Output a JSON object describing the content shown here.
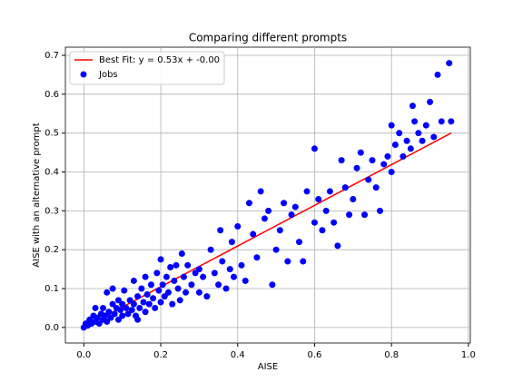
{
  "chart_data": {
    "type": "scatter",
    "title": "Comparing different prompts",
    "x_label": "AISE",
    "y_label": "AISE with an alternative prompt",
    "xlim": [
      -0.048,
      1.005
    ],
    "ylim": [
      -0.04,
      0.721
    ],
    "xticks": [
      {
        "value": 0,
        "label": "0.0"
      },
      0.2,
      0.4,
      0.6,
      0.8,
      {
        "value": 1,
        "label": "1.0"
      }
    ],
    "yticks": [
      {
        "value": 0,
        "label": "0.0"
      },
      0.1,
      0.2,
      0.3,
      0.4,
      0.5,
      0.6,
      0.7
    ],
    "grid": true,
    "legend": "upper left",
    "series": [
      {
        "name": "Best Fit: y = 0.53x + -0.00",
        "color": "red",
        "mode": "line",
        "x": [
          0,
          0.955
        ],
        "values": [
          0,
          0.5
        ]
      },
      {
        "name": "Jobs",
        "color": "blue",
        "mode": "markers",
        "x": [
          0.0,
          0.005,
          0.01,
          0.015,
          0.02,
          0.025,
          0.03,
          0.035,
          0.04,
          0.045,
          0.05,
          0.05,
          0.055,
          0.06,
          0.06,
          0.065,
          0.07,
          0.075,
          0.08,
          0.085,
          0.09,
          0.09,
          0.095,
          0.1,
          0.1,
          0.105,
          0.11,
          0.115,
          0.12,
          0.125,
          0.13,
          0.13,
          0.135,
          0.14,
          0.145,
          0.15,
          0.155,
          0.16,
          0.16,
          0.165,
          0.17,
          0.175,
          0.18,
          0.185,
          0.19,
          0.195,
          0.2,
          0.2,
          0.205,
          0.21,
          0.215,
          0.22,
          0.225,
          0.23,
          0.235,
          0.24,
          0.245,
          0.25,
          0.255,
          0.26,
          0.265,
          0.27,
          0.28,
          0.29,
          0.3,
          0.3,
          0.31,
          0.32,
          0.33,
          0.34,
          0.35,
          0.355,
          0.36,
          0.37,
          0.38,
          0.385,
          0.39,
          0.4,
          0.41,
          0.42,
          0.43,
          0.44,
          0.45,
          0.46,
          0.47,
          0.48,
          0.49,
          0.5,
          0.51,
          0.52,
          0.53,
          0.54,
          0.55,
          0.56,
          0.57,
          0.58,
          0.6,
          0.6,
          0.61,
          0.62,
          0.63,
          0.64,
          0.65,
          0.66,
          0.67,
          0.68,
          0.69,
          0.7,
          0.71,
          0.72,
          0.73,
          0.74,
          0.75,
          0.76,
          0.77,
          0.78,
          0.79,
          0.8,
          0.8,
          0.81,
          0.82,
          0.83,
          0.84,
          0.85,
          0.855,
          0.86,
          0.87,
          0.88,
          0.89,
          0.9,
          0.91,
          0.92,
          0.93,
          0.95,
          0.955,
          0.14,
          0.03,
          0.075
        ],
        "values": [
          0.0,
          0.01,
          0.005,
          0.02,
          0.01,
          0.03,
          0.015,
          0.025,
          0.01,
          0.035,
          0.02,
          0.05,
          0.03,
          0.015,
          0.09,
          0.04,
          0.025,
          0.06,
          0.035,
          0.05,
          0.02,
          0.07,
          0.045,
          0.03,
          0.06,
          0.095,
          0.05,
          0.035,
          0.07,
          0.045,
          0.06,
          0.12,
          0.03,
          0.08,
          0.05,
          0.1,
          0.065,
          0.04,
          0.13,
          0.085,
          0.06,
          0.11,
          0.075,
          0.05,
          0.14,
          0.095,
          0.065,
          0.175,
          0.11,
          0.08,
          0.13,
          0.09,
          0.155,
          0.06,
          0.12,
          0.16,
          0.1,
          0.07,
          0.19,
          0.13,
          0.09,
          0.16,
          0.11,
          0.14,
          0.09,
          0.15,
          0.13,
          0.08,
          0.2,
          0.14,
          0.11,
          0.25,
          0.17,
          0.1,
          0.15,
          0.22,
          0.13,
          0.26,
          0.16,
          0.12,
          0.32,
          0.24,
          0.18,
          0.35,
          0.28,
          0.3,
          0.11,
          0.2,
          0.25,
          0.32,
          0.17,
          0.29,
          0.31,
          0.22,
          0.17,
          0.35,
          0.46,
          0.27,
          0.33,
          0.25,
          0.3,
          0.35,
          0.27,
          0.21,
          0.43,
          0.36,
          0.29,
          0.33,
          0.41,
          0.45,
          0.29,
          0.38,
          0.43,
          0.36,
          0.3,
          0.42,
          0.44,
          0.4,
          0.52,
          0.47,
          0.5,
          0.44,
          0.48,
          0.46,
          0.57,
          0.53,
          0.5,
          0.48,
          0.52,
          0.58,
          0.49,
          0.65,
          0.53,
          0.68,
          0.53,
          0.02,
          0.05,
          0.1
        ]
      }
    ]
  }
}
